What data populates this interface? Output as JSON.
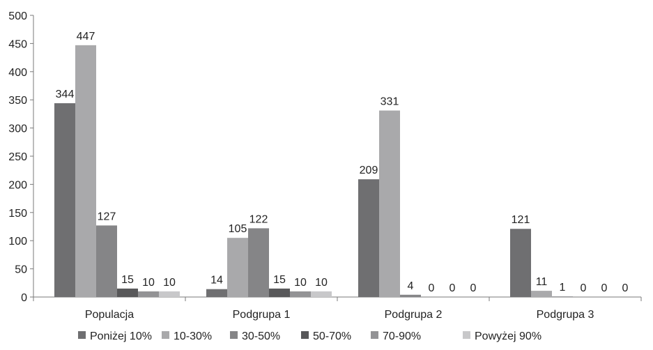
{
  "chart_data": {
    "type": "bar",
    "title": "",
    "xlabel": "",
    "ylabel": "",
    "ylim": [
      0,
      500
    ],
    "yticks": [
      0,
      50,
      100,
      150,
      200,
      250,
      300,
      350,
      400,
      450,
      500
    ],
    "categories": [
      "Populacja",
      "Podgrupa 1",
      "Podgrupa 2",
      "Podgrupa 3"
    ],
    "grid": false,
    "legend_position": "bottom",
    "series": [
      {
        "name": "Poniżej 10%",
        "color": "#6f6f71",
        "values": [
          344,
          14,
          209,
          121
        ]
      },
      {
        "name": "10-30%",
        "color": "#a9a9ab",
        "values": [
          447,
          105,
          331,
          11
        ]
      },
      {
        "name": "30-50%",
        "color": "#858587",
        "values": [
          127,
          122,
          4,
          1
        ]
      },
      {
        "name": "50-70%",
        "color": "#58585a",
        "values": [
          15,
          15,
          0,
          0
        ]
      },
      {
        "name": "70-90%",
        "color": "#939395",
        "values": [
          10,
          10,
          0,
          0
        ]
      },
      {
        "name": "Powyżej 90%",
        "color": "#c8c8ca",
        "values": [
          10,
          10,
          0,
          0
        ]
      }
    ]
  }
}
